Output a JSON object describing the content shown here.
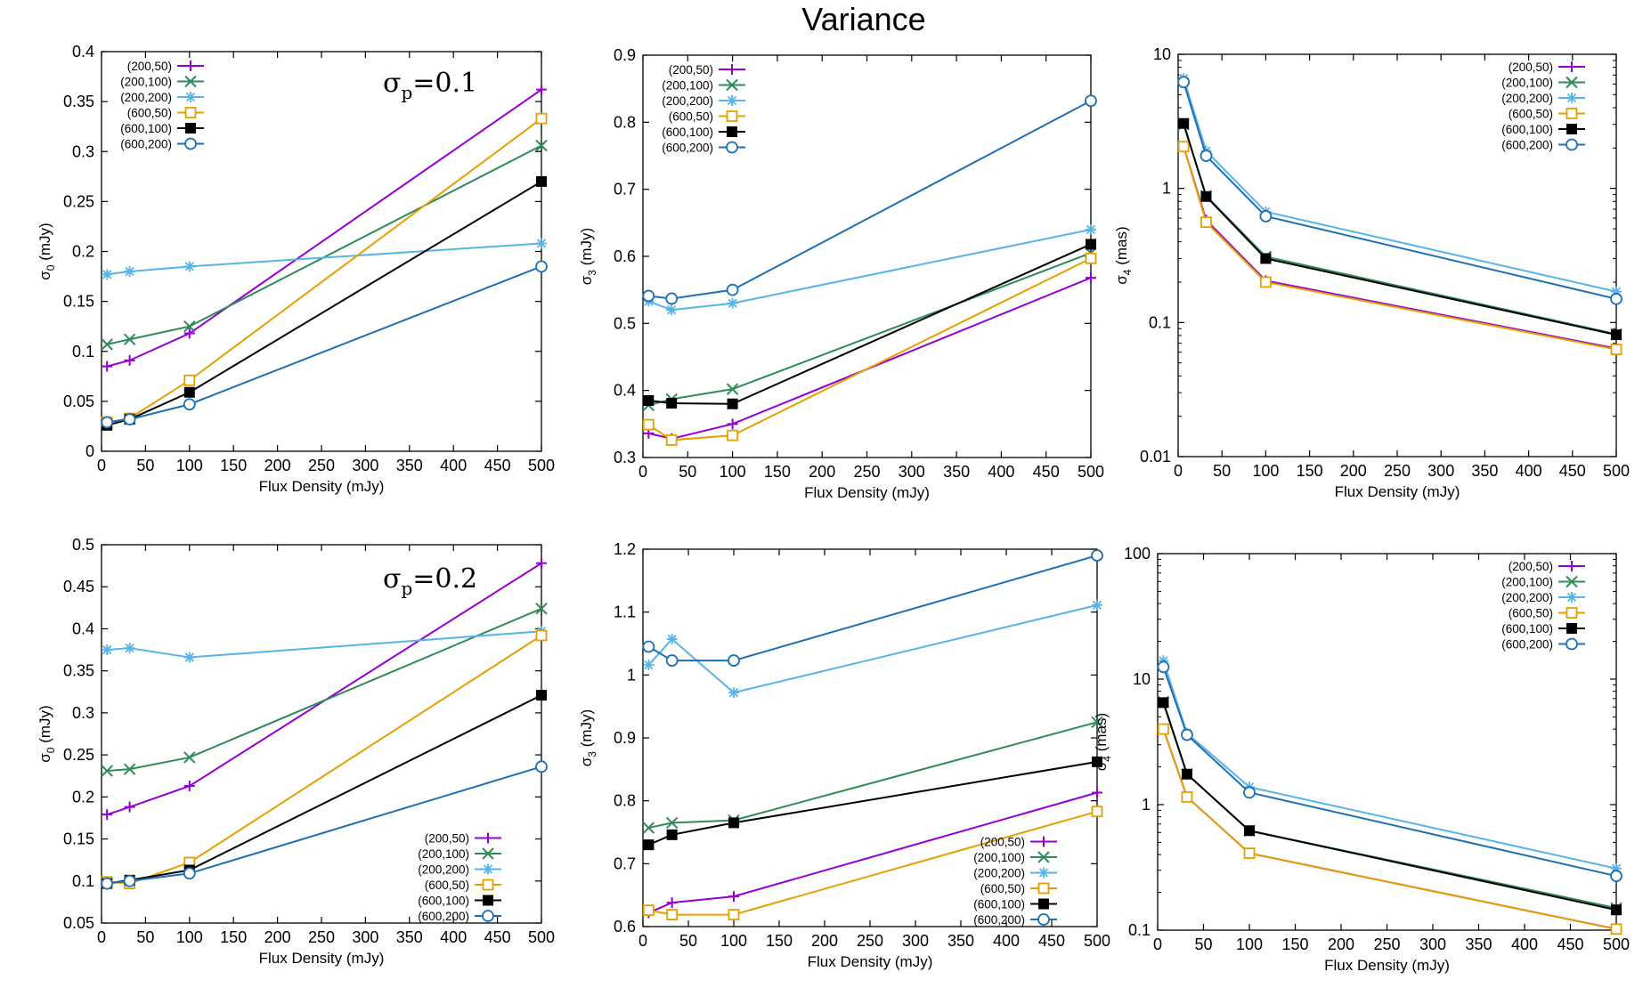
{
  "figure_title": "Variance",
  "chart_data": [
    {
      "id": "p1",
      "type": "line",
      "scale": "linear",
      "xlabel": "Flux Density (mJy)",
      "ylabel": "σ_0 (mJy)",
      "ylabel_main": "σ",
      "ylabel_sub": "0",
      "ylabel_unit": " (mJy)",
      "xlim": [
        0,
        500
      ],
      "ylim": [
        0,
        0.4
      ],
      "xticks": [
        0,
        50,
        100,
        150,
        200,
        250,
        300,
        350,
        400,
        450,
        500
      ],
      "xtick_labels": [
        "0",
        "50",
        "100",
        "150",
        "200",
        "250",
        "300",
        "350",
        "400",
        "450",
        "500"
      ],
      "yticks": [
        0,
        0.05,
        0.1,
        0.15,
        0.2,
        0.25,
        0.3,
        0.35,
        0.4
      ],
      "ytick_labels": [
        "0",
        "0.05",
        "0.1",
        "0.15",
        "0.2",
        "0.25",
        "0.3",
        "0.35",
        "0.4"
      ],
      "annotation": "σp=0.1",
      "annotation_main": "σ",
      "annotation_sub": "p",
      "annotation_rest": "=0.1",
      "legend_position": "top-left",
      "x": [
        6.25,
        32,
        100,
        500
      ],
      "series": [
        {
          "name": "(200,50)",
          "values": [
            0.085,
            0.091,
            0.118,
            0.362
          ]
        },
        {
          "name": "(200,100)",
          "values": [
            0.107,
            0.112,
            0.125,
            0.306
          ]
        },
        {
          "name": "(200,200)",
          "values": [
            0.177,
            0.18,
            0.185,
            0.208
          ]
        },
        {
          "name": "(600,50)",
          "values": [
            0.029,
            0.033,
            0.071,
            0.333
          ]
        },
        {
          "name": "(600,100)",
          "values": [
            0.026,
            0.032,
            0.059,
            0.27
          ]
        },
        {
          "name": "(600,200)",
          "values": [
            0.029,
            0.032,
            0.047,
            0.185
          ]
        }
      ]
    },
    {
      "id": "p2",
      "type": "line",
      "scale": "linear",
      "xlabel": "Flux Density (mJy)",
      "ylabel": "σ_3 (mJy)",
      "ylabel_main": "σ",
      "ylabel_sub": "3",
      "ylabel_unit": " (mJy)",
      "xlim": [
        0,
        500
      ],
      "ylim": [
        0.3,
        0.9
      ],
      "xticks": [
        0,
        50,
        100,
        150,
        200,
        250,
        300,
        350,
        400,
        450,
        500
      ],
      "xtick_labels": [
        "0",
        "50",
        "100",
        "150",
        "200",
        "250",
        "300",
        "350",
        "400",
        "450",
        "500"
      ],
      "yticks": [
        0.3,
        0.4,
        0.5,
        0.6,
        0.7,
        0.8,
        0.9
      ],
      "ytick_labels": [
        "0.3",
        "0.4",
        "0.5",
        "0.6",
        "0.7",
        "0.8",
        "0.9"
      ],
      "legend_position": "top-left",
      "x": [
        6.25,
        32,
        100,
        500
      ],
      "series": [
        {
          "name": "(200,50)",
          "values": [
            0.336,
            0.328,
            0.35,
            0.568
          ]
        },
        {
          "name": "(200,100)",
          "values": [
            0.378,
            0.387,
            0.402,
            0.605
          ]
        },
        {
          "name": "(200,200)",
          "values": [
            0.533,
            0.52,
            0.53,
            0.64
          ]
        },
        {
          "name": "(600,50)",
          "values": [
            0.349,
            0.326,
            0.333,
            0.597
          ]
        },
        {
          "name": "(600,100)",
          "values": [
            0.385,
            0.381,
            0.38,
            0.618
          ]
        },
        {
          "name": "(600,200)",
          "values": [
            0.541,
            0.537,
            0.55,
            0.832
          ]
        }
      ]
    },
    {
      "id": "p3",
      "type": "line",
      "scale": "log",
      "xlabel": "Flux Density (mJy)",
      "ylabel": "σ_4 (mas)",
      "ylabel_main": "σ",
      "ylabel_sub": "4",
      "ylabel_unit": " (mas)",
      "xlim": [
        0,
        500
      ],
      "ylim": [
        0.01,
        10
      ],
      "xticks": [
        0,
        50,
        100,
        150,
        200,
        250,
        300,
        350,
        400,
        450,
        500
      ],
      "xtick_labels": [
        "0",
        "50",
        "100",
        "150",
        "200",
        "250",
        "300",
        "350",
        "400",
        "450",
        "500"
      ],
      "yticks": [
        0.01,
        0.1,
        1,
        10
      ],
      "ytick_labels": [
        "0.01",
        "0.1",
        "1",
        "10"
      ],
      "legend_position": "top-right",
      "x": [
        6.25,
        32,
        100,
        500
      ],
      "series": [
        {
          "name": "(200,50)",
          "values": [
            2.05,
            0.58,
            0.205,
            0.064
          ]
        },
        {
          "name": "(200,100)",
          "values": [
            3.0,
            0.88,
            0.31,
            0.082
          ]
        },
        {
          "name": "(200,200)",
          "values": [
            6.6,
            1.9,
            0.67,
            0.17
          ]
        },
        {
          "name": "(600,50)",
          "values": [
            2.05,
            0.56,
            0.2,
            0.063
          ]
        },
        {
          "name": "(600,100)",
          "values": [
            3.05,
            0.87,
            0.3,
            0.081
          ]
        },
        {
          "name": "(600,200)",
          "values": [
            6.2,
            1.75,
            0.62,
            0.15
          ]
        }
      ]
    },
    {
      "id": "p4",
      "type": "line",
      "scale": "linear",
      "xlabel": "Flux Density (mJy)",
      "ylabel": "σ_0 (mJy)",
      "ylabel_main": "σ",
      "ylabel_sub": "0",
      "ylabel_unit": " (mJy)",
      "xlim": [
        0,
        500
      ],
      "ylim": [
        0.05,
        0.5
      ],
      "xticks": [
        0,
        50,
        100,
        150,
        200,
        250,
        300,
        350,
        400,
        450,
        500
      ],
      "xtick_labels": [
        "0",
        "50",
        "100",
        "150",
        "200",
        "250",
        "300",
        "350",
        "400",
        "450",
        "500"
      ],
      "yticks": [
        0.05,
        0.1,
        0.15,
        0.2,
        0.25,
        0.3,
        0.35,
        0.4,
        0.45,
        0.5
      ],
      "ytick_labels": [
        "0.05",
        "0.1",
        "0.15",
        "0.2",
        "0.25",
        "0.3",
        "0.35",
        "0.4",
        "0.45",
        "0.5"
      ],
      "annotation": "σp=0.2",
      "annotation_main": "σ",
      "annotation_sub": "p",
      "annotation_rest": "=0.2",
      "legend_position": "bottom-right",
      "x": [
        6.25,
        32,
        100,
        500
      ],
      "series": [
        {
          "name": "(200,50)",
          "values": [
            0.179,
            0.188,
            0.213,
            0.478
          ]
        },
        {
          "name": "(200,100)",
          "values": [
            0.231,
            0.233,
            0.247,
            0.424
          ]
        },
        {
          "name": "(200,200)",
          "values": [
            0.375,
            0.377,
            0.366,
            0.397
          ]
        },
        {
          "name": "(600,50)",
          "values": [
            0.099,
            0.097,
            0.122,
            0.392
          ]
        },
        {
          "name": "(600,100)",
          "values": [
            0.097,
            0.101,
            0.113,
            0.321
          ]
        },
        {
          "name": "(600,200)",
          "values": [
            0.097,
            0.1,
            0.109,
            0.236
          ]
        }
      ]
    },
    {
      "id": "p5",
      "type": "line",
      "scale": "linear",
      "xlabel": "Flux Density (mJy)",
      "ylabel": "σ_3 (mJy)",
      "ylabel_main": "σ",
      "ylabel_sub": "3",
      "ylabel_unit": " (mJy)",
      "xlim": [
        0,
        500
      ],
      "ylim": [
        0.6,
        1.2
      ],
      "xticks": [
        0,
        50,
        100,
        150,
        200,
        250,
        300,
        350,
        400,
        450,
        500
      ],
      "xtick_labels": [
        "0",
        "50",
        "100",
        "150",
        "200",
        "250",
        "300",
        "350",
        "400",
        "450",
        "500"
      ],
      "yticks": [
        0.6,
        0.7,
        0.8,
        0.9,
        1.0,
        1.1,
        1.2
      ],
      "ytick_labels": [
        "0.6",
        "0.7",
        "0.8",
        "0.9",
        "1",
        "1.1",
        "1.2"
      ],
      "legend_position": "bottom-right",
      "x": [
        6.25,
        32,
        100,
        500
      ],
      "series": [
        {
          "name": "(200,50)",
          "values": [
            0.622,
            0.638,
            0.648,
            0.813
          ]
        },
        {
          "name": "(200,100)",
          "values": [
            0.757,
            0.765,
            0.769,
            0.925
          ]
        },
        {
          "name": "(200,200)",
          "values": [
            1.016,
            1.057,
            0.972,
            1.111
          ]
        },
        {
          "name": "(600,50)",
          "values": [
            0.626,
            0.619,
            0.619,
            0.783
          ]
        },
        {
          "name": "(600,100)",
          "values": [
            0.73,
            0.746,
            0.765,
            0.862
          ]
        },
        {
          "name": "(600,200)",
          "values": [
            1.045,
            1.023,
            1.023,
            1.19
          ]
        }
      ]
    },
    {
      "id": "p6",
      "type": "line",
      "scale": "log",
      "xlabel": "Flux Density (mJy)",
      "ylabel": "σ_4 (mas)",
      "ylabel_main": "σ",
      "ylabel_sub": "4",
      "ylabel_unit": " (mas)",
      "xlim": [
        0,
        500
      ],
      "ylim": [
        0.1,
        100
      ],
      "xticks": [
        0,
        50,
        100,
        150,
        200,
        250,
        300,
        350,
        400,
        450,
        500
      ],
      "xtick_labels": [
        "0",
        "50",
        "100",
        "150",
        "200",
        "250",
        "300",
        "350",
        "400",
        "450",
        "500"
      ],
      "yticks": [
        0.1,
        1,
        10,
        100
      ],
      "ytick_labels": [
        "0.1",
        "1",
        "10",
        "100"
      ],
      "legend_position": "top-right",
      "x": [
        6.25,
        32,
        100,
        500
      ],
      "series": [
        {
          "name": "(200,50)",
          "values": [
            4.0,
            1.15,
            0.41,
            0.102
          ]
        },
        {
          "name": "(200,100)",
          "values": [
            6.6,
            1.75,
            0.62,
            0.15
          ]
        },
        {
          "name": "(200,200)",
          "values": [
            14.0,
            3.7,
            1.38,
            0.31
          ]
        },
        {
          "name": "(600,50)",
          "values": [
            4.0,
            1.15,
            0.41,
            0.102
          ]
        },
        {
          "name": "(600,100)",
          "values": [
            6.5,
            1.75,
            0.62,
            0.145
          ]
        },
        {
          "name": "(600,200)",
          "values": [
            12.5,
            3.6,
            1.25,
            0.27
          ]
        }
      ]
    }
  ],
  "series_styles": [
    {
      "color": "#9400d3",
      "marker": "plus"
    },
    {
      "color": "#2e8b57",
      "marker": "cross"
    },
    {
      "color": "#56b4e9",
      "marker": "star"
    },
    {
      "color": "#e69f00",
      "marker": "square-open"
    },
    {
      "color": "#000000",
      "marker": "square-filled"
    },
    {
      "color": "#1f6fb4",
      "marker": "circle-open"
    }
  ]
}
